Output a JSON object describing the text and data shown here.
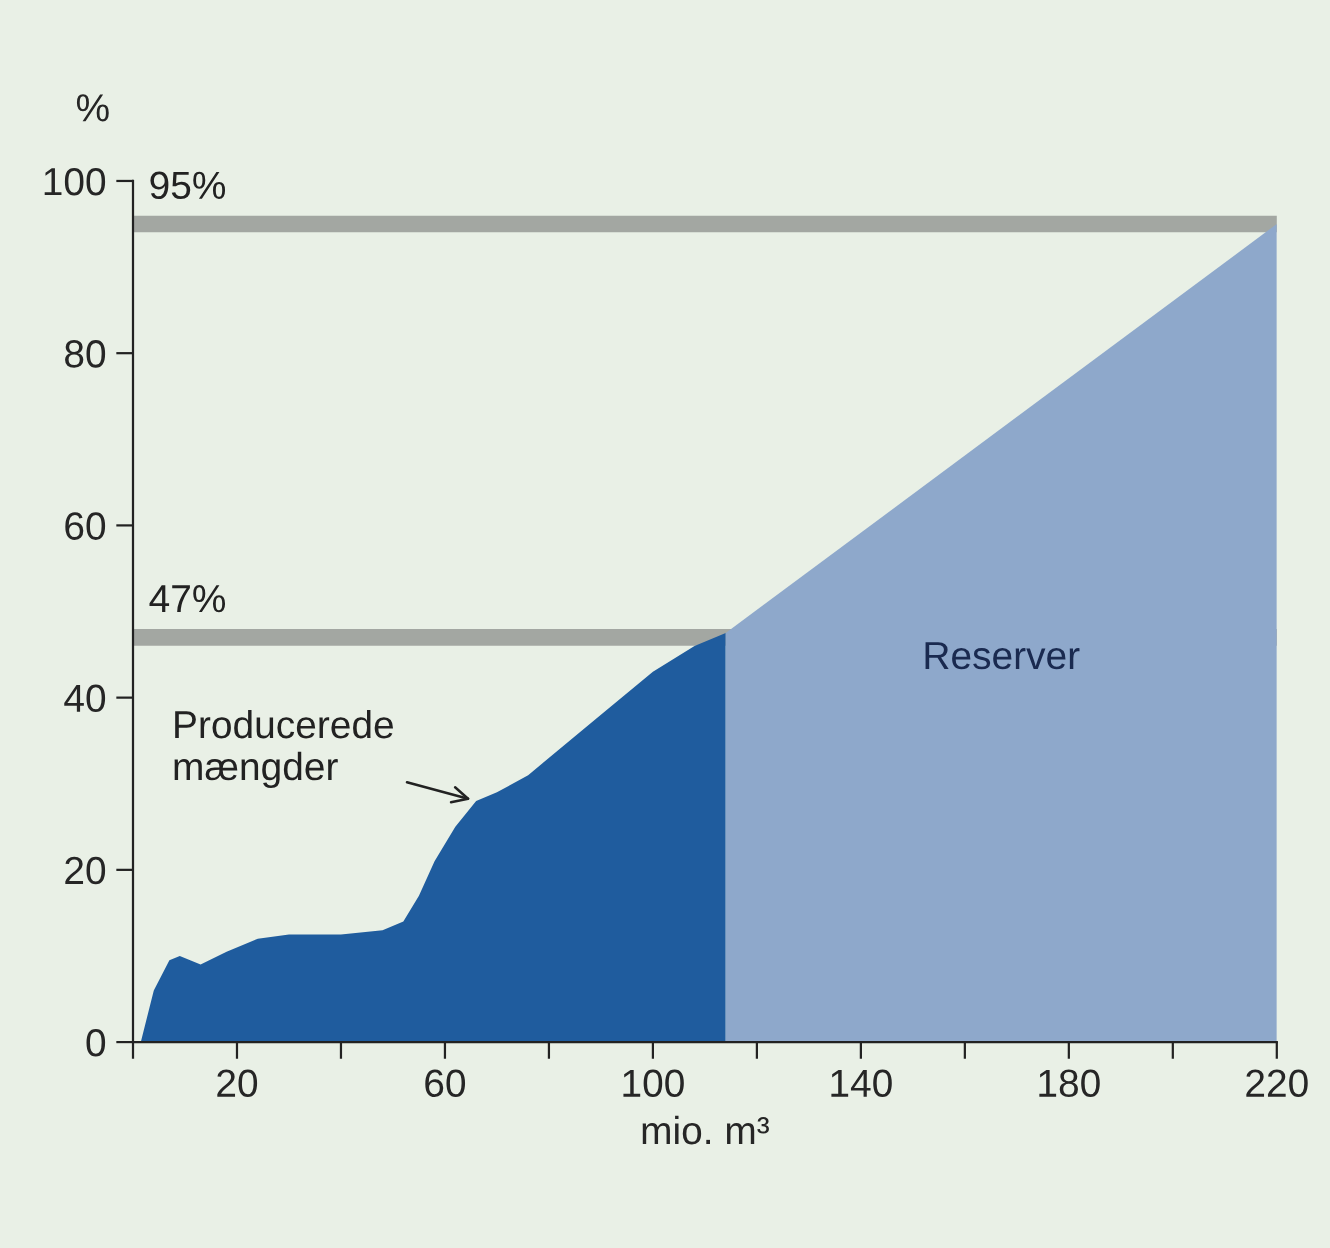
{
  "chart_data": {
    "type": "area",
    "ylabel": "%",
    "xlabel": "mio. m³",
    "xlim": [
      0,
      220
    ],
    "ylim": [
      0,
      100
    ],
    "xticks": [
      {
        "value": 0,
        "label": null
      },
      20,
      {
        "value": 40,
        "label": null
      },
      60,
      {
        "value": 80,
        "label": null
      },
      100,
      {
        "value": 120,
        "label": null
      },
      140,
      {
        "value": 160,
        "label": null
      },
      180,
      {
        "value": 200,
        "label": null
      },
      220
    ],
    "yticks": [
      0,
      20,
      40,
      60,
      80,
      100
    ],
    "series": [
      {
        "name": "Producerede mængder",
        "color": "#1f5c9e",
        "x": [
          1.5,
          4,
          7,
          9,
          11,
          13,
          18,
          24,
          30,
          40,
          48,
          52,
          55,
          58,
          62,
          66,
          70,
          76,
          82,
          90,
          100,
          108,
          114
        ],
        "values": [
          0,
          6,
          9.5,
          10,
          9.5,
          9,
          10.5,
          12,
          12.5,
          12.5,
          13,
          14,
          17,
          21,
          25,
          28,
          29,
          31,
          34,
          38,
          43,
          46,
          47.5
        ]
      },
      {
        "name": "Reserver",
        "color": "#8ea8cb",
        "x": [
          114,
          220
        ],
        "values": [
          47.5,
          95
        ]
      }
    ],
    "ref_lines": [
      {
        "axis": "y",
        "value": 95,
        "label": "95%",
        "color": "#a3a7a2"
      },
      {
        "axis": "y",
        "value": 47,
        "label": "47%",
        "color": "#a3a7a2"
      }
    ],
    "grid": false,
    "legend": false
  }
}
